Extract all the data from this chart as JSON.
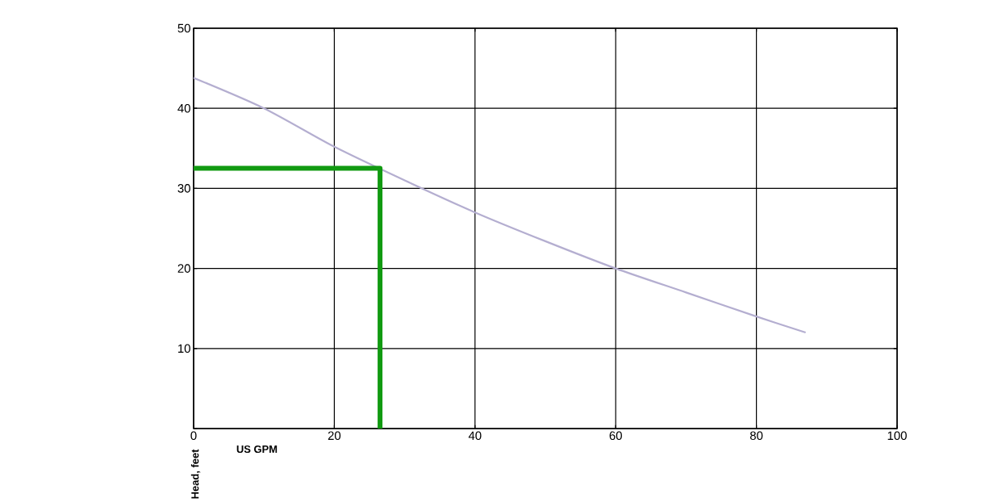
{
  "chart_data": {
    "type": "line",
    "xlabel": "US GPM",
    "ylabel": "Head, feet",
    "xlim": [
      0,
      100
    ],
    "ylim": [
      0,
      50
    ],
    "xticks": [
      0,
      20,
      40,
      60,
      80,
      100
    ],
    "yticks": [
      {
        "value": 0,
        "label": null
      },
      10,
      20,
      30,
      40,
      50
    ],
    "grid": true,
    "series": [
      {
        "color": "#b4aed0",
        "x": [
          0,
          10,
          20,
          30,
          40,
          50,
          60,
          70,
          80,
          87
        ],
        "values": [
          43.8,
          40,
          35.2,
          31,
          27,
          23.4,
          20,
          17,
          14,
          12
        ]
      },
      {
        "color": "#119a11",
        "x": [
          0,
          26.5,
          26.5
        ],
        "values": [
          32.5,
          32.5,
          0
        ]
      }
    ]
  }
}
